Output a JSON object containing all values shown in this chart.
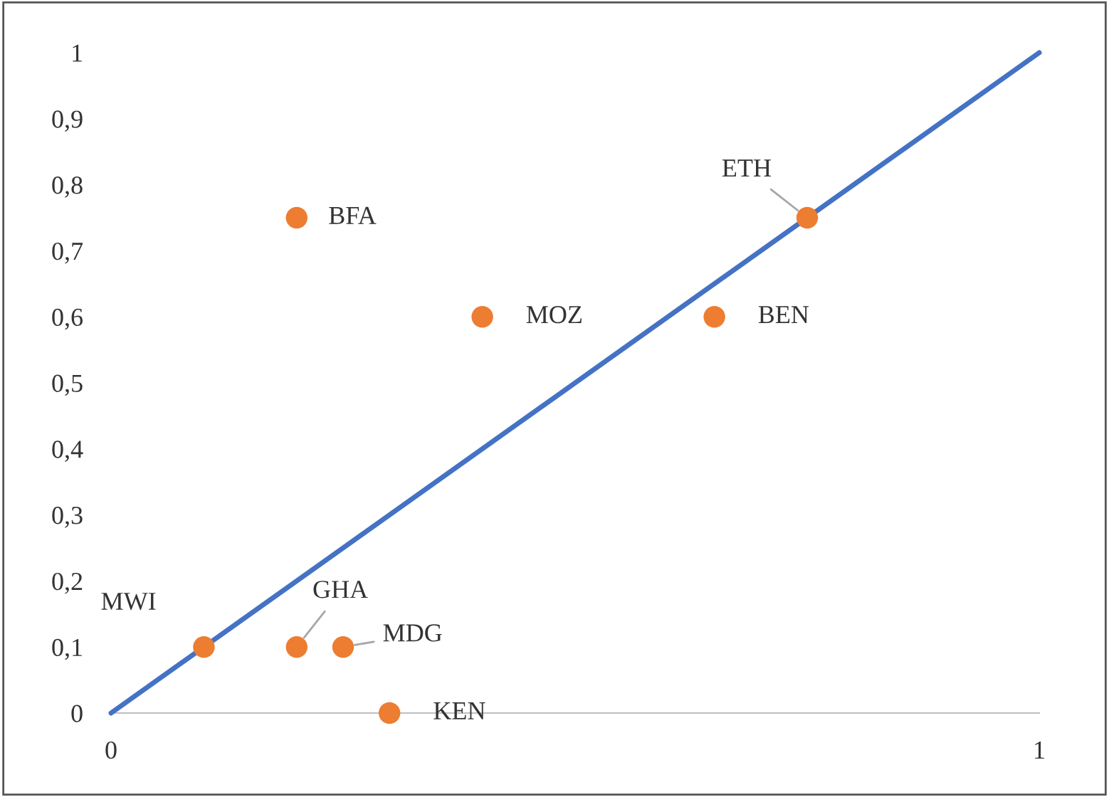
{
  "chart_data": {
    "type": "scatter",
    "series": [
      {
        "color": "#ed7d31",
        "marker": "circle",
        "x": [
          0.2,
          0.4,
          0.65,
          0.75,
          0.1,
          0.2,
          0.25,
          0.3
        ],
        "values": [
          0.75,
          0.6,
          0.6,
          0.75,
          0.1,
          0.1,
          0.1,
          0
        ]
      },
      {
        "type": "line",
        "color": "#4472c4",
        "x": [
          0,
          1
        ],
        "values": [
          0,
          1
        ]
      }
    ],
    "annotations": [
      {
        "text": "BFA",
        "x": 0.2,
        "y": 0.75
      },
      {
        "text": "MOZ",
        "x": 0.4,
        "y": 0.6
      },
      {
        "text": "BEN",
        "x": 0.65,
        "y": 0.6
      },
      {
        "text": "ETH",
        "x": 0.75,
        "y": 0.75
      },
      {
        "text": "MWI",
        "x": 0.1,
        "y": 0.1
      },
      {
        "text": "GHA",
        "x": 0.2,
        "y": 0.1
      },
      {
        "text": "MDG",
        "x": 0.25,
        "y": 0.1
      },
      {
        "text": "KEN",
        "x": 0.3,
        "y": 0
      }
    ],
    "xlim": [
      0,
      1
    ],
    "xticks": [
      0,
      1
    ],
    "ylim": [
      0,
      1
    ],
    "yticks": [
      0,
      {
        "value": 0.1,
        "label": "0,1"
      },
      {
        "value": 0.2,
        "label": "0,2"
      },
      {
        "value": 0.3,
        "label": "0,3"
      },
      {
        "value": 0.4,
        "label": "0,4"
      },
      {
        "value": 0.5,
        "label": "0,5"
      },
      {
        "value": 0.6,
        "label": "0,6"
      },
      {
        "value": 0.7,
        "label": "0,7"
      },
      {
        "value": 0.8,
        "label": "0,8"
      },
      {
        "value": 0.9,
        "label": "0,9"
      },
      1
    ],
    "grid": false
  }
}
